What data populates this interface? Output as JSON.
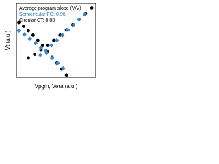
{
  "chart_data": {
    "type": "scatter",
    "x_label": "Vpgm, Vera (a.u.)",
    "y_label": "Vt (a.u.)",
    "annotations": [
      {
        "text": "Average program slope (V/V)",
        "color": "#000000"
      },
      {
        "text": "Semicircular FG: 0.96",
        "color": "#1f77b4"
      },
      {
        "text": "Circular CT: 0.83",
        "color": "#000000"
      }
    ],
    "xlim": [
      0,
      10
    ],
    "ylim": [
      0,
      10
    ],
    "series": [
      {
        "color": "#000000",
        "marker": "circle",
        "x": [
          0.3,
          0.9,
          1.5,
          2.1,
          2.7,
          3.3,
          3.9,
          4.5,
          5.1,
          5.7,
          6.3
        ],
        "values": [
          7.4,
          6.9,
          6.3,
          5.7,
          5.0,
          4.3,
          3.5,
          2.7,
          1.9,
          1.1,
          0.3
        ]
      },
      {
        "color": "#000000",
        "marker": "circle",
        "x": [
          1.5,
          2.3,
          3.1,
          3.9,
          4.7,
          5.5,
          6.3,
          7.1,
          7.9,
          8.7,
          9.5
        ],
        "values": [
          2.6,
          3.1,
          3.7,
          4.3,
          5.0,
          5.7,
          6.4,
          7.1,
          7.8,
          8.6,
          9.4
        ]
      },
      {
        "color": "#3a86c8",
        "marker": "diamond",
        "x": [
          3.0,
          3.7,
          4.4,
          5.1,
          5.8,
          6.5,
          7.2,
          7.9,
          8.6
        ],
        "values": [
          3.0,
          3.6,
          4.3,
          5.0,
          5.7,
          6.4,
          7.1,
          7.8,
          8.5
        ]
      },
      {
        "color": "#3a86c8",
        "marker": "diamond",
        "x": [
          0.3,
          1.0,
          1.7,
          2.4,
          3.1,
          3.8,
          4.5,
          5.2,
          5.9
        ],
        "values": [
          6.3,
          5.8,
          5.2,
          4.6,
          4.0,
          3.3,
          2.6,
          1.9,
          1.2
        ]
      }
    ]
  }
}
